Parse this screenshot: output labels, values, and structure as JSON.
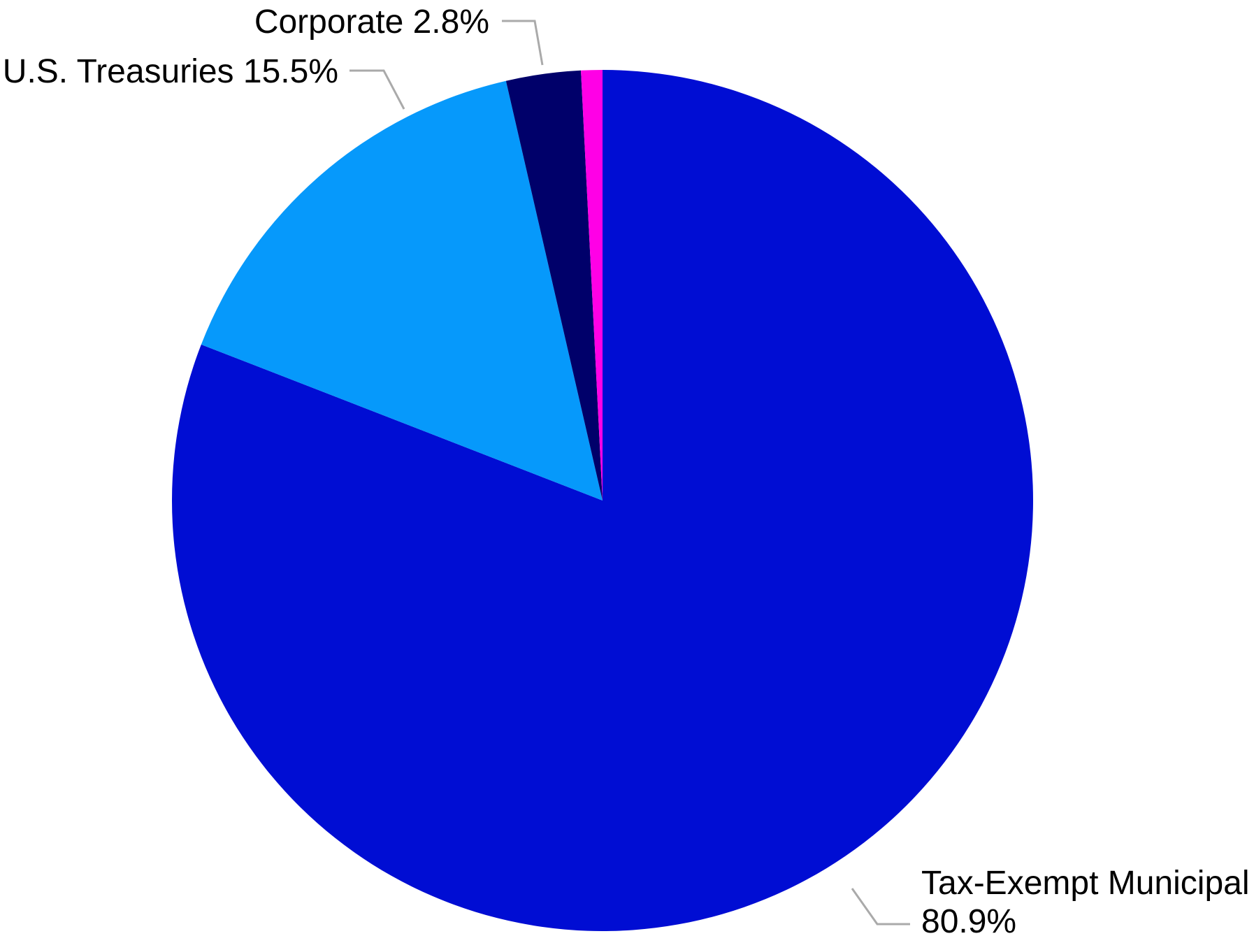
{
  "chart_data": {
    "type": "pie",
    "start_angle": "12 o'clock",
    "direction": "clockwise",
    "slices": [
      {
        "name": "Tax-Exempt Municipal",
        "value": 80.9,
        "label": "Tax-Exempt Municipal",
        "value_label": "80.9%",
        "color": "#000dd3"
      },
      {
        "name": "U.S. Treasuries",
        "value": 15.5,
        "label": "U.S. Treasuries 15.5%",
        "color": "#0699fb"
      },
      {
        "name": "Corporate",
        "value": 2.8,
        "label": "Corporate 2.8%",
        "color": "#00006a"
      },
      {
        "name": "",
        "value": 0.8,
        "color": "#ff00e6"
      }
    ]
  }
}
